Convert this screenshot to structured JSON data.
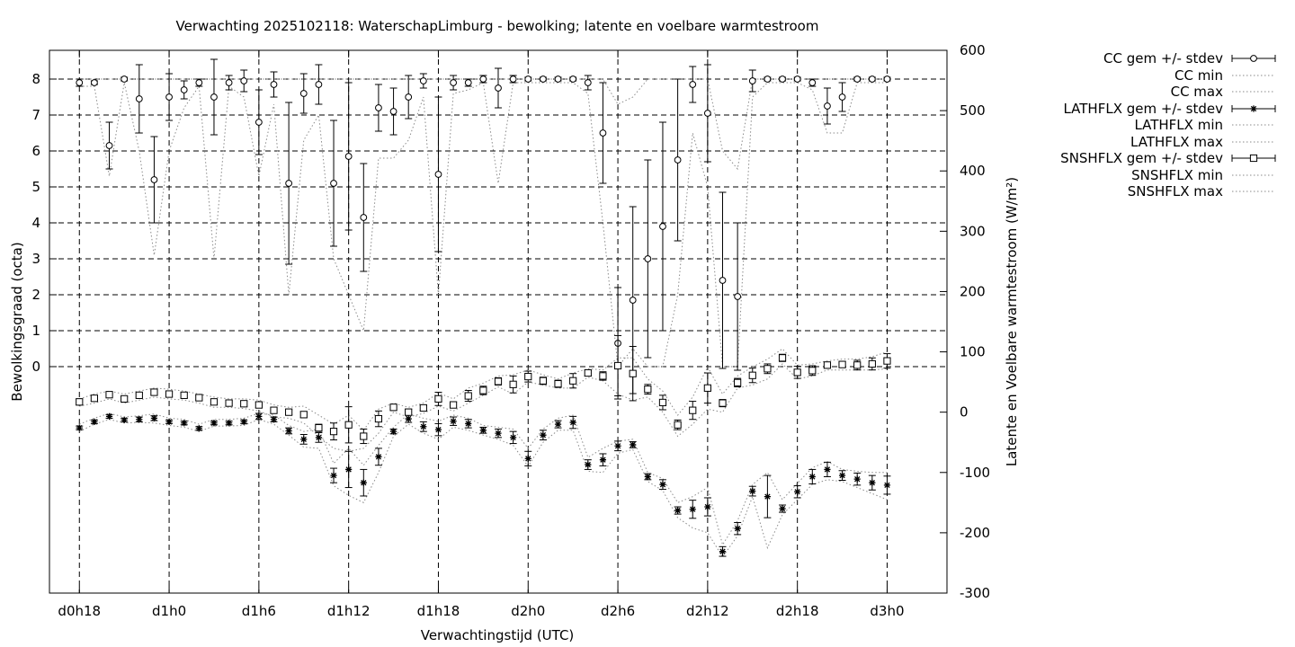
{
  "chart_data": {
    "type": "line",
    "title": "Verwachting 2025102118: WaterschapLimburg - bewolking; latente en voelbare warmtestroom",
    "xlabel": "Verwachtingstijd (UTC)",
    "ylabel": "Bewolkingsgraad (octa)",
    "y2label": "Latente en Voelbare warmtestroom (W/m²)",
    "xlim_hours": [
      -2,
      58
    ],
    "ylim": [
      -6.3,
      8.8
    ],
    "y2lim": [
      -300,
      600
    ],
    "x_ticks": [
      {
        "h": 0,
        "label": "d0h18"
      },
      {
        "h": 6,
        "label": "d1h0"
      },
      {
        "h": 12,
        "label": "d1h6"
      },
      {
        "h": 18,
        "label": "d1h12"
      },
      {
        "h": 24,
        "label": "d1h18"
      },
      {
        "h": 30,
        "label": "d2h0"
      },
      {
        "h": 36,
        "label": "d2h6"
      },
      {
        "h": 42,
        "label": "d2h12"
      },
      {
        "h": 48,
        "label": "d2h18"
      },
      {
        "h": 54,
        "label": "d3h0"
      }
    ],
    "y_ticks": [
      0,
      1,
      2,
      3,
      4,
      5,
      6,
      7,
      8
    ],
    "y2_ticks": [
      -300,
      -200,
      -100,
      0,
      100,
      200,
      300,
      400,
      500,
      600
    ],
    "x": [
      0,
      1,
      2,
      3,
      4,
      5,
      6,
      7,
      8,
      9,
      10,
      11,
      12,
      13,
      14,
      15,
      16,
      17,
      18,
      19,
      20,
      21,
      22,
      23,
      24,
      25,
      26,
      27,
      28,
      29,
      30,
      31,
      32,
      33,
      34,
      35,
      36,
      37,
      38,
      39,
      40,
      41,
      42,
      43,
      44,
      45,
      46,
      47,
      48,
      49,
      50,
      51,
      52,
      53,
      54
    ],
    "grid": true,
    "legend_position": "outside-right",
    "series": [
      {
        "name": "CC gem +/- stdev",
        "axis": "y1",
        "marker": "circle",
        "values": [
          7.9,
          7.9,
          6.15,
          8.0,
          7.45,
          5.2,
          7.5,
          7.7,
          7.9,
          7.5,
          7.9,
          7.95,
          6.8,
          7.85,
          5.1,
          7.6,
          7.85,
          5.1,
          5.85,
          4.15,
          7.2,
          7.1,
          7.5,
          7.95,
          5.35,
          7.9,
          7.9,
          8.0,
          7.75,
          8.0,
          8.0,
          8.0,
          8.0,
          8.0,
          7.9,
          6.5,
          0.65,
          1.85,
          3.0,
          3.9,
          5.75,
          7.85,
          7.05,
          2.4,
          1.95,
          7.95,
          8.0,
          8.0,
          8.0,
          7.9,
          7.25,
          7.5,
          8.0,
          8.0,
          8.0
        ],
        "stdev": [
          0.1,
          0.05,
          0.65,
          0.05,
          0.95,
          1.2,
          0.65,
          0.25,
          0.1,
          1.05,
          0.2,
          0.3,
          0.9,
          0.35,
          2.25,
          0.55,
          0.55,
          1.75,
          2.05,
          1.5,
          0.65,
          0.65,
          0.6,
          0.2,
          2.15,
          0.2,
          0.1,
          0.1,
          0.55,
          0.1,
          0.05,
          0.05,
          0.05,
          0.05,
          0.2,
          1.4,
          1.55,
          2.6,
          2.75,
          2.9,
          2.25,
          0.5,
          1.35,
          2.45,
          2.05,
          0.3,
          0.05,
          0.05,
          0.05,
          0.1,
          0.5,
          0.4,
          0.05,
          0.05,
          0.05
        ]
      },
      {
        "name": "CC min",
        "axis": "y1",
        "style": "dotted",
        "values": [
          7.8,
          7.8,
          5.3,
          7.9,
          6.0,
          3.1,
          6.0,
          7.2,
          7.8,
          3.0,
          7.8,
          7.5,
          5.3,
          7.3,
          2.0,
          6.3,
          7.0,
          3.0,
          2.0,
          1.0,
          5.8,
          5.8,
          6.3,
          7.5,
          2.0,
          7.6,
          7.7,
          7.9,
          5.1,
          7.9,
          7.9,
          7.9,
          7.9,
          7.9,
          7.6,
          4.0,
          0.0,
          0.5,
          0.0,
          0.0,
          2.0,
          6.5,
          5.0,
          0.0,
          0.0,
          7.5,
          7.9,
          7.9,
          7.9,
          7.7,
          6.5,
          6.5,
          7.9,
          7.9,
          7.9
        ]
      },
      {
        "name": "CC max",
        "axis": "y1",
        "style": "dotted",
        "values": [
          8,
          8,
          8,
          8,
          8,
          8,
          8,
          8,
          8,
          8,
          8,
          8,
          8,
          8,
          8,
          8,
          8,
          8,
          8,
          8,
          8,
          8,
          8,
          8,
          8,
          8,
          8,
          8,
          8,
          8,
          8,
          8,
          8,
          8,
          8,
          8,
          7.3,
          7.5,
          8,
          8,
          8,
          8,
          8,
          6.0,
          5.5,
          8,
          8,
          8,
          8,
          8,
          8,
          8,
          8,
          8,
          8
        ]
      },
      {
        "name": "LATHFLX gem +/- stdev",
        "axis": "y2",
        "marker": "star",
        "values": [
          -26,
          -16,
          -7,
          -13,
          -12,
          -10,
          -16,
          -18,
          -27,
          -18,
          -18,
          -16,
          -7,
          -12,
          -31,
          -45,
          -42,
          -105,
          -95,
          -117,
          -74,
          -32,
          -11,
          -24,
          -29,
          -15,
          -19,
          -30,
          -35,
          -42,
          -77,
          -38,
          -20,
          -17,
          -87,
          -79,
          -56,
          -54,
          -107,
          -120,
          -163,
          -161,
          -157,
          -231,
          -193,
          -131,
          -140,
          -160,
          -132,
          -107,
          -95,
          -105,
          -111,
          -117,
          -121
        ],
        "stdev": [
          3,
          3,
          3,
          3,
          4,
          4,
          3,
          3,
          3,
          3,
          3,
          3,
          5,
          4,
          5,
          8,
          8,
          12,
          30,
          22,
          14,
          4,
          6,
          8,
          10,
          7,
          7,
          5,
          7,
          10,
          12,
          8,
          6,
          10,
          8,
          10,
          8,
          5,
          5,
          8,
          6,
          15,
          15,
          8,
          10,
          8,
          35,
          6,
          10,
          12,
          12,
          8,
          10,
          12,
          15
        ]
      },
      {
        "name": "LATHFLX min",
        "axis": "y2",
        "style": "dotted",
        "values": [
          -32,
          -20,
          -12,
          -18,
          -17,
          -18,
          -22,
          -25,
          -32,
          -23,
          -23,
          -22,
          -12,
          -20,
          -38,
          -58,
          -60,
          -122,
          -138,
          -150,
          -100,
          -40,
          -20,
          -35,
          -45,
          -25,
          -30,
          -38,
          -45,
          -55,
          -90,
          -50,
          -30,
          -30,
          -98,
          -100,
          -68,
          -62,
          -115,
          -130,
          -175,
          -192,
          -200,
          -240,
          -205,
          -140,
          -225,
          -170,
          -145,
          -120,
          -112,
          -115,
          -125,
          -135,
          -145
        ]
      },
      {
        "name": "LATHFLX max",
        "axis": "y2",
        "style": "dotted",
        "values": [
          -20,
          -10,
          -2,
          -8,
          -6,
          -3,
          -10,
          -12,
          -20,
          -12,
          -12,
          -10,
          -2,
          -5,
          -22,
          -32,
          -28,
          -85,
          -60,
          -88,
          -55,
          -25,
          -3,
          -10,
          -15,
          -5,
          -10,
          -22,
          -25,
          -28,
          -60,
          -28,
          -10,
          -5,
          -75,
          -60,
          -48,
          -45,
          -100,
          -110,
          -150,
          -140,
          -125,
          -220,
          -180,
          -120,
          -100,
          -145,
          -118,
          -92,
          -82,
          -95,
          -98,
          -100,
          -100
        ]
      },
      {
        "name": "SNSHFLX gem +/- stdev",
        "axis": "y2",
        "marker": "square",
        "values": [
          17,
          23,
          29,
          22,
          28,
          33,
          30,
          28,
          24,
          17,
          15,
          14,
          12,
          3,
          0,
          -4,
          -26,
          -32,
          -21,
          -40,
          -11,
          8,
          0,
          7,
          22,
          12,
          27,
          36,
          51,
          46,
          59,
          52,
          47,
          52,
          65,
          60,
          77,
          64,
          38,
          16,
          -21,
          3,
          40,
          15,
          49,
          61,
          72,
          90,
          66,
          69,
          78,
          79,
          78,
          80,
          85
        ],
        "stdev": [
          5,
          4,
          3,
          3,
          3,
          3,
          4,
          4,
          4,
          3,
          4,
          4,
          4,
          4,
          4,
          5,
          6,
          14,
          30,
          12,
          13,
          5,
          5,
          4,
          11,
          5,
          9,
          7,
          6,
          14,
          9,
          6,
          6,
          12,
          5,
          7,
          50,
          45,
          8,
          12,
          8,
          15,
          25,
          6,
          7,
          12,
          8,
          6,
          10,
          8,
          5,
          5,
          8,
          10,
          12
        ]
      },
      {
        "name": "SNSHFLX min",
        "axis": "y2",
        "style": "dotted",
        "values": [
          10,
          15,
          22,
          15,
          20,
          25,
          22,
          20,
          15,
          8,
          8,
          6,
          2,
          -8,
          -10,
          -18,
          -40,
          -60,
          -65,
          -60,
          -35,
          0,
          -8,
          -2,
          10,
          2,
          15,
          28,
          42,
          30,
          50,
          45,
          40,
          40,
          58,
          52,
          30,
          20,
          25,
          0,
          -40,
          -20,
          5,
          0,
          40,
          45,
          55,
          80,
          55,
          60,
          70,
          70,
          70,
          70,
          72
        ]
      },
      {
        "name": "SNSHFLX max",
        "axis": "y2",
        "style": "dotted",
        "values": [
          22,
          30,
          35,
          30,
          35,
          40,
          38,
          35,
          30,
          25,
          22,
          22,
          20,
          12,
          8,
          10,
          -5,
          -20,
          -5,
          -30,
          5,
          15,
          8,
          15,
          32,
          22,
          40,
          48,
          60,
          62,
          70,
          62,
          55,
          65,
          72,
          70,
          90,
          90,
          55,
          35,
          -5,
          25,
          75,
          30,
          60,
          75,
          88,
          105,
          78,
          80,
          85,
          88,
          88,
          92,
          100
        ]
      }
    ]
  }
}
